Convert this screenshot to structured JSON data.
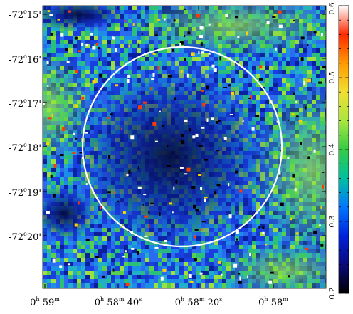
{
  "image_panel": {
    "declination_labels": [
      {
        "deg": "-72",
        "min": "15",
        "dec": -72.25
      },
      {
        "deg": "-72",
        "min": "16",
        "dec": -72.2667
      },
      {
        "deg": "-72",
        "min": "17",
        "dec": -72.2833
      },
      {
        "deg": "-72",
        "min": "18",
        "dec": -72.3
      },
      {
        "deg": "-72",
        "min": "19",
        "dec": -72.3167
      },
      {
        "deg": "-72",
        "min": "20",
        "dec": -72.3333
      }
    ],
    "right_ascension_labels": [
      {
        "h": "0",
        "m": "59",
        "s": ""
      },
      {
        "h": "0",
        "m": "58",
        "s": "40"
      },
      {
        "h": "0",
        "m": "58",
        "s": "20"
      },
      {
        "h": "0",
        "m": "58",
        "s": ""
      }
    ],
    "circle_color": "#ffffff"
  },
  "colorbar": {
    "min": 0.2,
    "max": 0.6,
    "tick_labels": [
      "0.2",
      "0.3",
      "0.4",
      "0.5",
      "0.6"
    ],
    "colors": [
      "#000000",
      "#0a0a7a",
      "#0022dd",
      "#0077ff",
      "#00c0a0",
      "#33cc44",
      "#a8e640",
      "#f2e030",
      "#ff9a00",
      "#ff2a00",
      "#ffffff"
    ]
  }
}
